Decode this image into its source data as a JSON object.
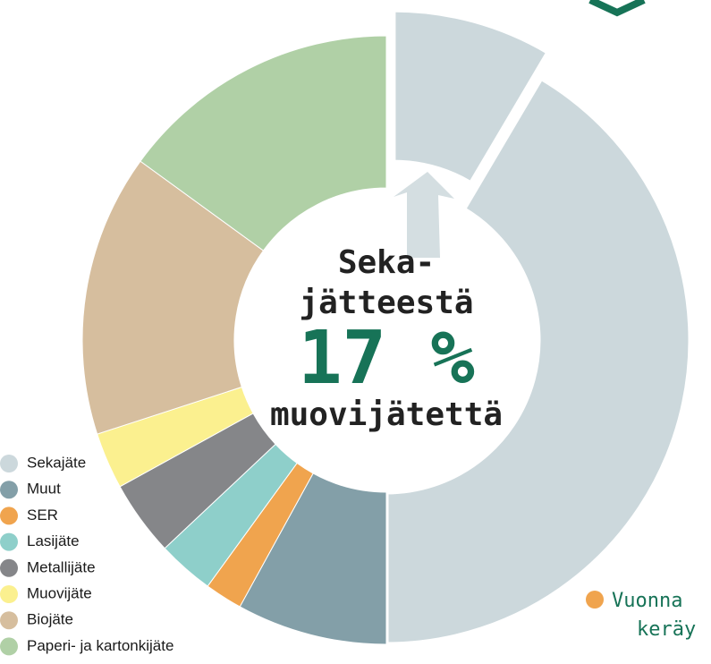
{
  "chart_data": {
    "type": "donut",
    "categories": [
      "Sekajäte",
      "Muut",
      "SER",
      "Lasijäte",
      "Metallijäte",
      "Muovijäte",
      "Biojäte",
      "Paperi- ja kartonkijäte"
    ],
    "values": [
      50,
      8,
      2,
      3,
      4,
      3,
      15,
      15
    ],
    "colors": [
      "#ccd8dc",
      "#839fa8",
      "#f0a44e",
      "#8ecfca",
      "#858689",
      "#fbf08f",
      "#d6be9e",
      "#b0d0a6"
    ],
    "center_text": {
      "top": [
        "Seka-",
        "jätteestä"
      ],
      "share": 17,
      "share_label": "17 %",
      "bottom": "muovijätettä"
    },
    "note": {
      "lines": [
        "Vuonna",
        "keräy"
      ],
      "color": "#f0a44e"
    }
  }
}
